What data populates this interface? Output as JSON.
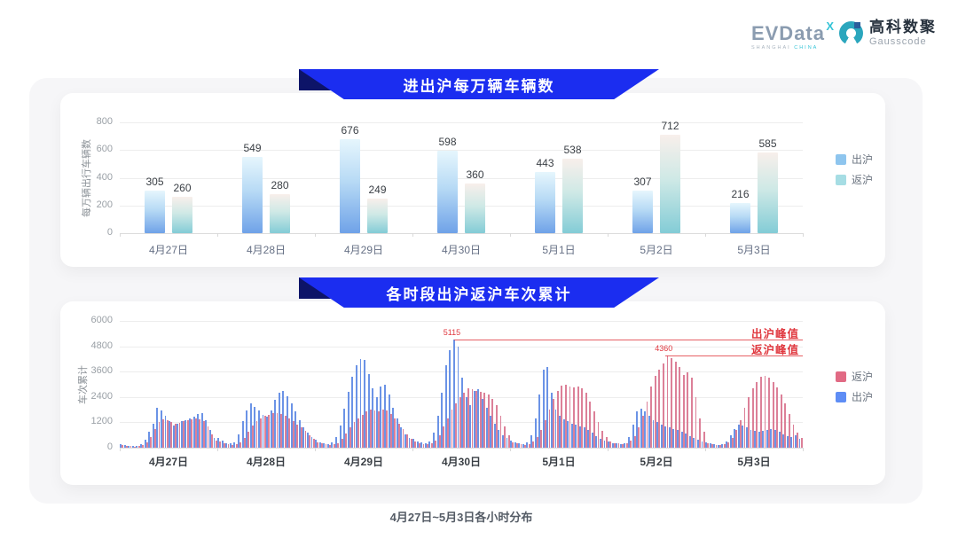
{
  "header": {
    "evdata": {
      "wordmark": "EVData",
      "sup": "X",
      "tagline_city": "SHANGHAI",
      "tagline_country": "CHINA"
    },
    "gausscode": {
      "cn": "高科数聚",
      "en": "Gausscode"
    }
  },
  "colors": {
    "banner_blue": "#1b2df0",
    "banner_fold": "#0d1468",
    "annotation_red": "#e0383f",
    "panel_bg": "#f6f6f8",
    "card_bg": "#ffffff"
  },
  "chart_data": [
    {
      "type": "bar",
      "title": "进出沪每万辆车辆数",
      "ylabel": "每万辆出行车辆数",
      "categories": [
        "4月27日",
        "4月28日",
        "4月29日",
        "4月30日",
        "5月1日",
        "5月2日",
        "5月3日"
      ],
      "series": [
        {
          "name": "出沪",
          "legend_color": "#8ec5ee",
          "gradient": [
            "#6fa2e8",
            "#b7daf5",
            "#e6f6fd"
          ],
          "values": [
            305,
            549,
            676,
            598,
            443,
            307,
            216
          ]
        },
        {
          "name": "返沪",
          "legend_color": "#a6dde4",
          "gradient": [
            "#83ccd6",
            "#cfe9e6",
            "#f8efeb"
          ],
          "values": [
            260,
            280,
            249,
            360,
            538,
            712,
            585
          ]
        }
      ],
      "ylim": [
        0,
        800
      ],
      "yticks": [
        0,
        200,
        400,
        600,
        800
      ],
      "grid": true,
      "legend_position": "right"
    },
    {
      "type": "bar",
      "title": "各时段出沪返沪车次累计",
      "ylabel": "车次累计",
      "xlabel": "4月27日~5月3日各小时分布",
      "categories": [
        "4月27日",
        "4月28日",
        "4月29日",
        "4月30日",
        "5月1日",
        "5月2日",
        "5月3日"
      ],
      "hours_per_day": 24,
      "series": [
        {
          "name": "出沪",
          "legend_color": "#5e8df5",
          "color": "#6b93e6",
          "values_by_day": [
            [
              150,
              110,
              90,
              70,
              80,
              160,
              380,
              750,
              1150,
              1900,
              1750,
              1500,
              1250,
              1050,
              1150,
              1250,
              1300,
              1380,
              1480,
              1580,
              1620,
              1300,
              850,
              450
            ],
            [
              480,
              320,
              230,
              190,
              260,
              620,
              1250,
              1750,
              2100,
              1950,
              1750,
              1550,
              1480,
              1750,
              2250,
              2600,
              2700,
              2450,
              2100,
              1700,
              1300,
              950,
              700,
              500
            ],
            [
              380,
              270,
              210,
              180,
              240,
              520,
              1050,
              1850,
              2650,
              3350,
              3900,
              4200,
              4150,
              3500,
              2800,
              2400,
              2900,
              3000,
              2500,
              1900,
              1400,
              950,
              650,
              450
            ],
            [
              400,
              300,
              250,
              220,
              300,
              700,
              1500,
              2600,
              3900,
              4600,
              5115,
              4800,
              3300,
              2400,
              2000,
              2700,
              2750,
              2300,
              1900,
              1500,
              1150,
              850,
              600,
              450
            ],
            [
              350,
              260,
              200,
              180,
              250,
              600,
              1400,
              2500,
              3700,
              3800,
              2600,
              1800,
              1500,
              1350,
              1250,
              1150,
              1100,
              1000,
              950,
              850,
              700,
              550,
              420,
              320
            ],
            [
              300,
              230,
              190,
              170,
              230,
              520,
              1100,
              1700,
              1850,
              1720,
              1500,
              1320,
              1200,
              1100,
              1000,
              950,
              900,
              850,
              760,
              660,
              560,
              460,
              360,
              290
            ],
            [
              260,
              190,
              150,
              130,
              160,
              300,
              600,
              900,
              1100,
              1050,
              950,
              850,
              800,
              760,
              800,
              850,
              900,
              850,
              760,
              650,
              560,
              500,
              600,
              400
            ]
          ]
        },
        {
          "name": "返沪",
          "legend_color": "#e16a84",
          "color": "#dc8098",
          "values_by_day": [
            [
              130,
              100,
              80,
              60,
              70,
              120,
              260,
              520,
              880,
              1220,
              1350,
              1300,
              1200,
              1120,
              1160,
              1250,
              1300,
              1350,
              1400,
              1360,
              1250,
              1000,
              640,
              340
            ],
            [
              300,
              220,
              170,
              140,
              160,
              260,
              460,
              760,
              1060,
              1260,
              1400,
              1500,
              1560,
              1620,
              1650,
              1600,
              1500,
              1400,
              1250,
              1100,
              950,
              800,
              600,
              400
            ],
            [
              260,
              190,
              150,
              130,
              150,
              230,
              410,
              660,
              960,
              1210,
              1400,
              1560,
              1700,
              1800,
              1760,
              1700,
              1800,
              1750,
              1600,
              1400,
              1150,
              900,
              650,
              400
            ],
            [
              300,
              230,
              180,
              160,
              200,
              350,
              600,
              1000,
              1400,
              1800,
              2100,
              2400,
              2600,
              2800,
              2750,
              2700,
              2650,
              2600,
              2500,
              2300,
              2000,
              1500,
              1000,
              600
            ],
            [
              260,
              190,
              150,
              130,
              160,
              280,
              500,
              850,
              1300,
              1800,
              2300,
              2700,
              2950,
              3000,
              2900,
              2850,
              2900,
              2800,
              2600,
              2200,
              1700,
              1200,
              800,
              500
            ],
            [
              280,
              220,
              190,
              170,
              200,
              320,
              550,
              950,
              1500,
              2200,
              2900,
              3400,
              3700,
              4000,
              4360,
              4250,
              4050,
              3800,
              3450,
              3550,
              3300,
              2400,
              1400,
              750
            ],
            [
              230,
              180,
              140,
              120,
              150,
              260,
              460,
              820,
              1320,
              1900,
              2400,
              2800,
              3100,
              3350,
              3400,
              3300,
              3100,
              2850,
              2500,
              2100,
              1600,
              1100,
              700,
              450
            ]
          ]
        }
      ],
      "ylim": [
        0,
        6000
      ],
      "yticks": [
        0,
        1200,
        2400,
        3600,
        4800,
        6000
      ],
      "annotations": [
        {
          "series": "出沪",
          "label": "出沪峰值",
          "value": 5115
        },
        {
          "series": "返沪",
          "label": "返沪峰值",
          "value": 4360
        }
      ],
      "grid": true,
      "legend_position": "right"
    }
  ]
}
